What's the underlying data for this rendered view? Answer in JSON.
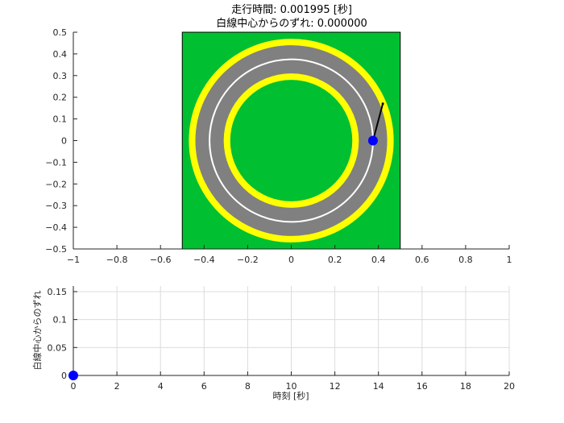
{
  "chart_data": [
    {
      "type": "scatter",
      "title_line1": "走行時間: 0.001995 [秒]",
      "title_line2": "白線中心からのずれ: 0.000000",
      "xlim": [
        -1,
        1
      ],
      "ylim": [
        -0.5,
        0.5
      ],
      "xticks": [
        "−1",
        "−0.8",
        "−0.6",
        "−0.4",
        "−0.2",
        "0",
        "0.2",
        "0.4",
        "0.6",
        "0.8",
        "1"
      ],
      "xtick_values": [
        -1,
        -0.8,
        -0.6,
        -0.4,
        -0.2,
        0,
        0.2,
        0.4,
        0.6,
        0.8,
        1
      ],
      "yticks": [
        "0.5",
        "0.4",
        "0.3",
        "0.2",
        "0.1",
        "0",
        "−0.1",
        "−0.2",
        "−0.3",
        "−0.4",
        "−0.5"
      ],
      "ytick_values": [
        0.5,
        0.4,
        0.3,
        0.2,
        0.1,
        0,
        -0.1,
        -0.2,
        -0.3,
        -0.4,
        -0.5
      ],
      "field": {
        "x": [
          -0.5,
          0.5
        ],
        "y": [
          -0.5,
          0.5
        ],
        "color": "#00c031"
      },
      "track": {
        "outer_yellow_radius": 0.47,
        "outer_gray_radius": 0.44,
        "inner_gray_radius": 0.31,
        "inner_yellow_radius": 0.28,
        "center_line_radius": 0.375,
        "yellow": "#ffff00",
        "gray": "#808080",
        "line": "#ffffff"
      },
      "vehicle": {
        "x": 0.375,
        "y": 0,
        "color": "#0000ff"
      },
      "heading_line": {
        "x": [
          0.375,
          0.42
        ],
        "y": [
          0,
          0.17
        ],
        "color": "#000000"
      },
      "grid": false
    },
    {
      "type": "line",
      "xlabel": "時刻 [秒]",
      "ylabel": "白線中心からのずれ",
      "xlim": [
        0,
        20
      ],
      "ylim": [
        0,
        0.16
      ],
      "xticks": [
        "0",
        "2",
        "4",
        "6",
        "8",
        "10",
        "12",
        "14",
        "16",
        "18",
        "20"
      ],
      "xtick_values": [
        0,
        2,
        4,
        6,
        8,
        10,
        12,
        14,
        16,
        18,
        20
      ],
      "yticks": [
        "0",
        "0.05",
        "0.1",
        "0.15"
      ],
      "ytick_values": [
        0,
        0.05,
        0.1,
        0.15
      ],
      "series": [
        {
          "x": [
            0
          ],
          "y": [
            0
          ],
          "color": "#0000ff"
        }
      ],
      "grid": true
    }
  ]
}
